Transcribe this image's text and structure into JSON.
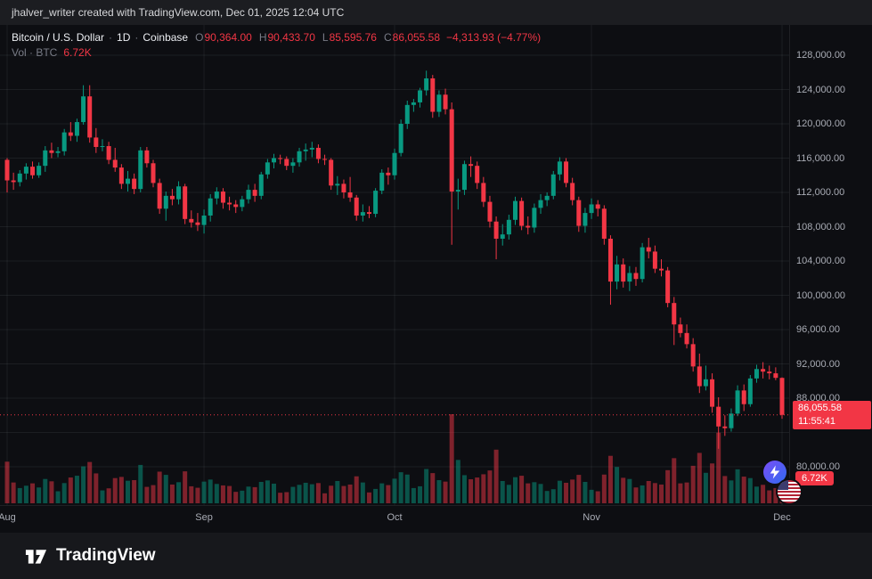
{
  "top_bar": {
    "text": "jhalver_writer created with TradingView.com, Dec 01, 2025 12:04 UTC"
  },
  "legend": {
    "symbol": "Bitcoin / U.S. Dollar",
    "sep": "·",
    "interval": "1D",
    "exchange": "Coinbase",
    "ohlc": {
      "o_label": "O",
      "o": "90,364.00",
      "h_label": "H",
      "h": "90,433.70",
      "l_label": "L",
      "l": "85,595.76",
      "c_label": "C",
      "c": "86,055.58",
      "change": "−4,313.93 (−4.77%)"
    },
    "volume_label": "Vol · BTC",
    "volume_value": "6.72K"
  },
  "price_axis": {
    "badge_price": "86,055.58",
    "badge_countdown": "11:55:41",
    "volume_badge": "6.72K",
    "labels": [
      {
        "value": 128000,
        "text": "128,000.00"
      },
      {
        "value": 124000,
        "text": "124,000.00"
      },
      {
        "value": 120000,
        "text": "120,000.00"
      },
      {
        "value": 116000,
        "text": "116,000.00"
      },
      {
        "value": 112000,
        "text": "112,000.00"
      },
      {
        "value": 108000,
        "text": "108,000.00"
      },
      {
        "value": 104000,
        "text": "104,000.00"
      },
      {
        "value": 100000,
        "text": "100,000.00"
      },
      {
        "value": 96000,
        "text": "96,000.00"
      },
      {
        "value": 92000,
        "text": "92,000.00"
      },
      {
        "value": 88000,
        "text": "88,000.00"
      },
      {
        "value": 80000,
        "text": "80,000.00"
      }
    ]
  },
  "time_axis": {
    "labels": [
      "Aug",
      "Sep",
      "Oct",
      "Nov",
      "Dec"
    ]
  },
  "footer": {
    "brand": "TradingView"
  },
  "icons": {
    "brand_logo": "tradingview-logo",
    "reaction_1": "lightning-bolt-icon",
    "reaction_2": "us-flag-icon"
  },
  "colors": {
    "up": "#089981",
    "down": "#f23645",
    "vol_up": "rgba(8,153,129,0.5)",
    "vol_down": "rgba(242,54,69,0.5)",
    "grid": "rgba(140,145,160,0.12)",
    "axis_text": "#a9acb5",
    "badge_bg": "#f23645",
    "chart_bg": "#0d0e12",
    "frame_bg": "#1c1d21"
  },
  "chart_data": {
    "type": "candlestick",
    "title": "Bitcoin / U.S. Dollar",
    "symbol": "BTCUSD",
    "exchange": "Coinbase",
    "interval": "1D",
    "start_date": "2025-08-01",
    "end_date": "2025-12-01",
    "x_axis_labels": [
      "Aug",
      "Sep",
      "Oct",
      "Nov",
      "Dec"
    ],
    "months": [
      {
        "label": "Aug",
        "index": 0
      },
      {
        "label": "Sep",
        "index": 31
      },
      {
        "label": "Oct",
        "index": 61
      },
      {
        "label": "Nov",
        "index": 92
      },
      {
        "label": "Dec",
        "index": 122
      }
    ],
    "price_scale": {
      "top_price": 128000,
      "bottom_price": 80000
    },
    "y_gridlines": [
      128000,
      124000,
      120000,
      116000,
      112000,
      108000,
      104000,
      100000,
      96000,
      92000,
      88000,
      84000,
      80000
    ],
    "current": {
      "price": 86055.58,
      "open": 90364.0,
      "high": 90433.7,
      "low": 85595.76,
      "change": -4313.93,
      "change_pct": -4.77,
      "countdown": "11:55:41",
      "volume_k": 6.72
    },
    "volume_unit": "K BTC",
    "candles_format": [
      "open",
      "high",
      "low",
      "close",
      "volume_k"
    ],
    "candles": [
      [
        115800,
        116000,
        112000,
        113400,
        14.2
      ],
      [
        113400,
        114300,
        112300,
        113200,
        7.1
      ],
      [
        113200,
        114600,
        112700,
        114200,
        5.2
      ],
      [
        114200,
        115400,
        113500,
        115000,
        6.0
      ],
      [
        115000,
        115600,
        113600,
        114000,
        6.8
      ],
      [
        114000,
        115500,
        113700,
        115100,
        5.4
      ],
      [
        115100,
        117400,
        114400,
        116900,
        8.3
      ],
      [
        116900,
        117800,
        116000,
        116600,
        7.5
      ],
      [
        116600,
        117300,
        116100,
        116800,
        4.1
      ],
      [
        116800,
        119400,
        116300,
        119000,
        6.9
      ],
      [
        119000,
        120200,
        118000,
        118600,
        8.8
      ],
      [
        118600,
        120600,
        117900,
        120200,
        9.4
      ],
      [
        120200,
        124500,
        119900,
        123200,
        12.6
      ],
      [
        123200,
        124500,
        117800,
        118400,
        14.1
      ],
      [
        118400,
        119500,
        116600,
        117300,
        10.2
      ],
      [
        117300,
        118200,
        116800,
        117400,
        4.4
      ],
      [
        117400,
        117900,
        115300,
        115800,
        5.1
      ],
      [
        115800,
        117200,
        114400,
        114900,
        8.6
      ],
      [
        114900,
        115300,
        112400,
        113000,
        9.0
      ],
      [
        113000,
        114500,
        112100,
        113600,
        7.7
      ],
      [
        113600,
        114200,
        111800,
        112400,
        7.9
      ],
      [
        112400,
        117300,
        112000,
        116900,
        13.1
      ],
      [
        116900,
        117300,
        114900,
        115400,
        5.6
      ],
      [
        115400,
        115800,
        112600,
        113100,
        6.2
      ],
      [
        113100,
        113600,
        109500,
        110100,
        10.8
      ],
      [
        110100,
        112100,
        108700,
        111600,
        9.7
      ],
      [
        111600,
        112400,
        110500,
        111200,
        6.4
      ],
      [
        111200,
        113300,
        110600,
        112700,
        7.2
      ],
      [
        112700,
        113000,
        108300,
        108900,
        10.9
      ],
      [
        108900,
        109900,
        107900,
        108500,
        5.8
      ],
      [
        108500,
        109600,
        107500,
        108200,
        5.3
      ],
      [
        108200,
        110000,
        107200,
        109300,
        7.4
      ],
      [
        109300,
        111800,
        108600,
        111300,
        8.1
      ],
      [
        111300,
        112600,
        110600,
        112100,
        6.6
      ],
      [
        112100,
        112500,
        110100,
        110800,
        6.1
      ],
      [
        110800,
        111500,
        109900,
        110600,
        5.9
      ],
      [
        110600,
        111100,
        109600,
        110300,
        3.9
      ],
      [
        110300,
        111600,
        109800,
        111200,
        4.3
      ],
      [
        111200,
        112900,
        110700,
        112300,
        5.7
      ],
      [
        112300,
        113000,
        110900,
        111600,
        5.5
      ],
      [
        111600,
        114400,
        111200,
        114100,
        7.3
      ],
      [
        114100,
        115900,
        113600,
        115500,
        7.8
      ],
      [
        115500,
        116500,
        114800,
        116000,
        6.7
      ],
      [
        116000,
        116400,
        115300,
        115900,
        3.6
      ],
      [
        115900,
        116200,
        114600,
        115100,
        3.8
      ],
      [
        115100,
        116000,
        114300,
        115500,
        5.6
      ],
      [
        115500,
        117200,
        115000,
        116800,
        6.3
      ],
      [
        116800,
        117700,
        115700,
        117000,
        7.0
      ],
      [
        117000,
        117900,
        116100,
        117200,
        6.5
      ],
      [
        117200,
        117600,
        115400,
        115900,
        6.9
      ],
      [
        115900,
        116400,
        115200,
        115800,
        3.4
      ],
      [
        115800,
        116000,
        112300,
        112800,
        6.0
      ],
      [
        112800,
        113900,
        111700,
        113000,
        7.6
      ],
      [
        113000,
        113500,
        111300,
        112000,
        5.9
      ],
      [
        112000,
        113800,
        110900,
        111400,
        6.4
      ],
      [
        111400,
        111700,
        108700,
        109300,
        9.2
      ],
      [
        109300,
        110600,
        108600,
        109700,
        7.1
      ],
      [
        109700,
        110400,
        109000,
        109500,
        3.7
      ],
      [
        109500,
        112500,
        109100,
        112200,
        4.9
      ],
      [
        112200,
        114700,
        111800,
        114300,
        6.8
      ],
      [
        114300,
        114900,
        112900,
        114000,
        6.2
      ],
      [
        114000,
        117100,
        113500,
        116600,
        8.4
      ],
      [
        116600,
        120500,
        116200,
        120000,
        10.6
      ],
      [
        120000,
        122700,
        119400,
        122200,
        9.8
      ],
      [
        122200,
        122900,
        121400,
        122500,
        5.2
      ],
      [
        122500,
        124200,
        121900,
        123900,
        5.8
      ],
      [
        123900,
        126200,
        123300,
        125300,
        11.7
      ],
      [
        125300,
        125700,
        120700,
        121400,
        10.3
      ],
      [
        121400,
        123900,
        120800,
        123400,
        7.9
      ],
      [
        123400,
        124100,
        121100,
        121700,
        7.4
      ],
      [
        121700,
        122500,
        105900,
        112100,
        30.4
      ],
      [
        112100,
        113600,
        110000,
        112300,
        14.8
      ],
      [
        112300,
        115700,
        111700,
        115300,
        9.6
      ],
      [
        115300,
        116200,
        113800,
        115100,
        8.2
      ],
      [
        115100,
        115600,
        112400,
        113100,
        8.8
      ],
      [
        113100,
        113800,
        110300,
        110900,
        9.9
      ],
      [
        110900,
        111600,
        107900,
        108600,
        11.2
      ],
      [
        108600,
        109200,
        104200,
        106600,
        18.3
      ],
      [
        106600,
        108300,
        105800,
        107100,
        7.6
      ],
      [
        107100,
        109400,
        106500,
        108800,
        6.3
      ],
      [
        108800,
        111500,
        108200,
        111000,
        8.9
      ],
      [
        111000,
        111400,
        107600,
        108100,
        9.4
      ],
      [
        108100,
        109200,
        107100,
        107900,
        6.8
      ],
      [
        107900,
        110700,
        107300,
        110200,
        7.2
      ],
      [
        110200,
        111800,
        109500,
        111100,
        6.6
      ],
      [
        111100,
        112000,
        110400,
        111600,
        4.2
      ],
      [
        111600,
        114500,
        111200,
        114100,
        4.8
      ],
      [
        114100,
        116100,
        113400,
        115600,
        7.7
      ],
      [
        115600,
        116000,
        112600,
        113100,
        7.0
      ],
      [
        113100,
        113700,
        110500,
        111100,
        8.1
      ],
      [
        111100,
        111500,
        107400,
        108100,
        9.7
      ],
      [
        108100,
        110200,
        107300,
        109600,
        7.3
      ],
      [
        109600,
        111300,
        108900,
        110600,
        4.6
      ],
      [
        110600,
        111100,
        109200,
        110100,
        4.1
      ],
      [
        110100,
        110500,
        105900,
        106600,
        9.8
      ],
      [
        106600,
        107000,
        98900,
        101600,
        16.2
      ],
      [
        101600,
        104600,
        100700,
        103600,
        12.4
      ],
      [
        103600,
        104300,
        100900,
        101600,
        8.7
      ],
      [
        101600,
        103400,
        100500,
        102600,
        8.3
      ],
      [
        102600,
        103300,
        101100,
        101900,
        5.4
      ],
      [
        101900,
        106100,
        101500,
        105600,
        6.1
      ],
      [
        105600,
        106700,
        104300,
        105100,
        7.6
      ],
      [
        105100,
        105800,
        102600,
        103100,
        6.9
      ],
      [
        103100,
        104200,
        102200,
        102900,
        6.4
      ],
      [
        102900,
        103300,
        98600,
        99100,
        11.3
      ],
      [
        99100,
        99800,
        94200,
        96600,
        15.4
      ],
      [
        96600,
        97400,
        95100,
        95600,
        6.8
      ],
      [
        95600,
        96600,
        93800,
        94300,
        7.1
      ],
      [
        94300,
        95000,
        91100,
        91700,
        12.8
      ],
      [
        91700,
        93200,
        88600,
        89400,
        17.2
      ],
      [
        89400,
        91800,
        88900,
        90200,
        10.4
      ],
      [
        90200,
        90900,
        86300,
        87000,
        13.6
      ],
      [
        87000,
        88100,
        82100,
        84700,
        24.1
      ],
      [
        84700,
        86000,
        83600,
        84500,
        9.3
      ],
      [
        84500,
        86800,
        84100,
        86200,
        7.8
      ],
      [
        86200,
        89500,
        85900,
        88900,
        11.6
      ],
      [
        88900,
        89600,
        86500,
        87300,
        9.1
      ],
      [
        87300,
        90700,
        87000,
        90300,
        8.6
      ],
      [
        90300,
        91900,
        89800,
        91400,
        5.7
      ],
      [
        91400,
        92200,
        90300,
        91100,
        6.3
      ],
      [
        91100,
        91800,
        90200,
        90900,
        4.4
      ],
      [
        90900,
        91600,
        90100,
        90369.51,
        5.2
      ],
      [
        90364.0,
        90433.7,
        85595.76,
        86055.58,
        6.72
      ]
    ]
  }
}
